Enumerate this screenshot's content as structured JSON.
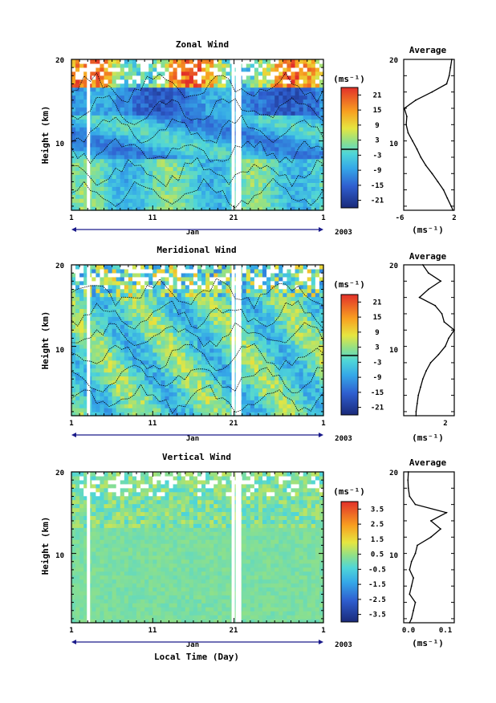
{
  "figure": {
    "xlabel": "Local Time (Day)",
    "month_label": "Jan",
    "year_label": "2003",
    "colorbar_unit": "(ms⁻¹)",
    "profile_title": "Average",
    "profile_unit": "(ms⁻¹)"
  },
  "chart_data": [
    {
      "type": "heatmap",
      "title": "Zonal Wind",
      "ylabel": "Height (km)",
      "x_ticks": [
        "1",
        "11",
        "21",
        "1"
      ],
      "y_ticks": [
        "10",
        "20"
      ],
      "xlim": [
        1,
        32
      ],
      "ylim": [
        1.5,
        20
      ],
      "colorbar": {
        "ticks": [
          "21",
          "15",
          "9",
          "3",
          "-3",
          "-9",
          "-15",
          "-21"
        ],
        "range": [
          -24,
          24
        ]
      },
      "gaps_day": [
        3.1,
        20.9,
        21.4,
        21.7
      ],
      "zero_contour": true,
      "average_profile": {
        "title": "Average",
        "xlim": [
          -6,
          2
        ],
        "x_ticks": [
          "-6",
          "2"
        ],
        "y_ticks": [
          "10",
          "20"
        ],
        "height_km": [
          1.5,
          2.0,
          3.0,
          4.0,
          5.0,
          6.0,
          7.0,
          8.0,
          9.0,
          10.0,
          11.0,
          12.0,
          13.0,
          14.0,
          15.0,
          16.0,
          17.0,
          18.0,
          19.0,
          20.0
        ],
        "value": [
          1.8,
          1.5,
          0.9,
          0.3,
          -0.6,
          -1.5,
          -2.5,
          -3.3,
          -3.9,
          -4.6,
          -5.3,
          -5.6,
          -5.5,
          -5.9,
          -4.1,
          -1.5,
          0.8,
          1.2,
          1.4,
          1.6
        ]
      }
    },
    {
      "type": "heatmap",
      "title": "Meridional Wind",
      "ylabel": "Height (km)",
      "x_ticks": [
        "1",
        "11",
        "21",
        "1"
      ],
      "y_ticks": [
        "10",
        "20"
      ],
      "xlim": [
        1,
        32
      ],
      "ylim": [
        1.5,
        20
      ],
      "colorbar": {
        "ticks": [
          "21",
          "15",
          "9",
          "3",
          "-3",
          "-9",
          "-15",
          "-21"
        ],
        "range": [
          -24,
          24
        ]
      },
      "gaps_day": [
        3.1,
        20.9,
        21.4,
        21.7
      ],
      "zero_contour": true,
      "average_profile": {
        "title": "Average",
        "xlim": [
          -2,
          2.5
        ],
        "x_ticks": [
          "2"
        ],
        "y_ticks": [
          "10",
          "20"
        ],
        "height_km": [
          1.5,
          2.0,
          3.0,
          4.0,
          5.0,
          6.0,
          7.0,
          8.0,
          9.0,
          10.0,
          11.0,
          12.0,
          13.0,
          14.0,
          15.0,
          16.0,
          17.0,
          18.0,
          19.0,
          20.0
        ],
        "value": [
          -0.9,
          -0.9,
          -0.8,
          -0.7,
          -0.5,
          -0.3,
          0.0,
          0.4,
          1.1,
          1.7,
          2.0,
          2.5,
          1.6,
          1.4,
          0.8,
          -0.6,
          0.2,
          1.3,
          0.2,
          -0.3
        ]
      }
    },
    {
      "type": "heatmap",
      "title": "Vertical Wind",
      "ylabel": "Height (km)",
      "x_ticks": [
        "1",
        "11",
        "21",
        "1"
      ],
      "y_ticks": [
        "10",
        "20"
      ],
      "xlim": [
        1,
        32
      ],
      "ylim": [
        1.5,
        20
      ],
      "colorbar": {
        "ticks": [
          "3.5",
          "2.5",
          "1.5",
          "0.5",
          "-0.5",
          "-1.5",
          "-2.5",
          "-3.5"
        ],
        "range": [
          -4,
          4
        ]
      },
      "gaps_day": [
        3.1,
        20.9,
        21.4,
        21.7
      ],
      "zero_contour": false,
      "average_profile": {
        "title": "Average",
        "xlim": [
          -0.01,
          0.12
        ],
        "x_ticks": [
          "0.0",
          "0.1"
        ],
        "y_ticks": [
          "10",
          "20"
        ],
        "height_km": [
          1.5,
          2.0,
          3.0,
          4.0,
          5.0,
          6.0,
          7.0,
          8.0,
          9.0,
          10.0,
          11.0,
          12.0,
          13.0,
          14.0,
          15.0,
          16.0,
          17.0,
          18.0,
          19.0,
          20.0
        ],
        "value": [
          0.005,
          0.01,
          0.015,
          0.02,
          0.005,
          0.01,
          0.015,
          0.005,
          0.01,
          0.02,
          0.025,
          0.06,
          0.085,
          0.06,
          0.1,
          0.02,
          0.005,
          0.002,
          0.001,
          0.002
        ]
      }
    }
  ]
}
